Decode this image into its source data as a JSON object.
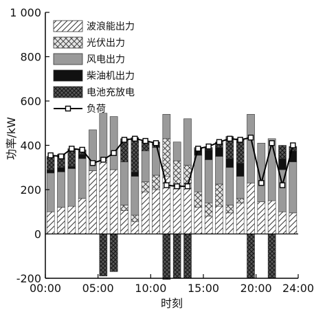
{
  "chart_data": {
    "type": "bar",
    "stacked": true,
    "xlabel": "时刻",
    "ylabel": "功率/kW",
    "ylim": [
      -200,
      1000
    ],
    "yticks": [
      -200,
      0,
      200,
      400,
      600,
      800,
      1000
    ],
    "ytick_labels": [
      "-200",
      "0",
      "200",
      "400",
      "600",
      "800",
      "1 000"
    ],
    "xlim": [
      0,
      24
    ],
    "xticks": [
      0,
      5,
      10,
      15,
      20,
      24
    ],
    "xtick_labels": [
      "00:00",
      "05:00",
      "10:00",
      "15:00",
      "20:00",
      "24:00"
    ],
    "grid": false,
    "legend_position": "top-left",
    "x": [
      0.5,
      1.5,
      2.5,
      3.5,
      4.5,
      5.5,
      6.5,
      7.5,
      8.5,
      9.5,
      10.5,
      11.5,
      12.5,
      13.5,
      14.5,
      15.5,
      16.5,
      17.5,
      18.5,
      19.5,
      20.5,
      21.5,
      22.5,
      23.5
    ],
    "series": [
      {
        "name": "波浪能出力",
        "pattern": "diagonal",
        "values": [
          100,
          120,
          125,
          160,
          285,
          330,
          290,
          105,
          55,
          190,
          200,
          260,
          220,
          230,
          120,
          80,
          125,
          95,
          140,
          230,
          145,
          150,
          100,
          95
        ]
      },
      {
        "name": "光伏出力",
        "pattern": "crosshatch",
        "values": [
          0,
          0,
          0,
          0,
          0,
          0,
          0,
          25,
          30,
          45,
          65,
          170,
          110,
          80,
          70,
          60,
          100,
          35,
          20,
          0,
          0,
          0,
          0,
          0
        ]
      },
      {
        "name": "风电出力",
        "pattern": "solid-gray",
        "values": [
          175,
          160,
          170,
          180,
          185,
          215,
          240,
          195,
          175,
          140,
          125,
          110,
          85,
          210,
          165,
          195,
          125,
          170,
          100,
          310,
          265,
          280,
          190,
          230
        ]
      },
      {
        "name": "柴油机出力",
        "pattern": "solid-black",
        "values": [
          15,
          20,
          10,
          20,
          0,
          0,
          0,
          0,
          20,
          0,
          0,
          0,
          0,
          0,
          25,
          45,
          40,
          40,
          60,
          0,
          0,
          0,
          50,
          50
        ]
      },
      {
        "name": "电池充放电",
        "pattern": "dense-crosshatch",
        "values": [
          60,
          60,
          80,
          20,
          0,
          0,
          0,
          105,
          155,
          45,
          25,
          0,
          0,
          0,
          10,
          10,
          25,
          100,
          110,
          -200,
          0,
          -200,
          60,
          20
        ]
      },
      {
        "name": "电池充放电",
        "pattern": "dense-crosshatch",
        "legend": false,
        "values": [
          0,
          0,
          0,
          0,
          0,
          -190,
          -170,
          0,
          0,
          0,
          0,
          -205,
          -200,
          -200,
          0,
          0,
          0,
          0,
          0,
          0,
          0,
          0,
          0,
          0
        ]
      }
    ],
    "load": {
      "name": "负荷",
      "x": [
        0.5,
        1.5,
        2.5,
        3.5,
        4.5,
        5.5,
        6.5,
        7.5,
        8.5,
        9.5,
        10.5,
        11.5,
        12.5,
        13.5,
        14.5,
        15.5,
        16.5,
        17.5,
        18.5,
        19.5,
        20.5,
        21.5,
        22.5,
        23.5
      ],
      "values": [
        355,
        350,
        385,
        380,
        320,
        335,
        365,
        425,
        430,
        420,
        410,
        220,
        215,
        215,
        385,
        395,
        415,
        430,
        425,
        435,
        230,
        410,
        220,
        400
      ]
    }
  }
}
